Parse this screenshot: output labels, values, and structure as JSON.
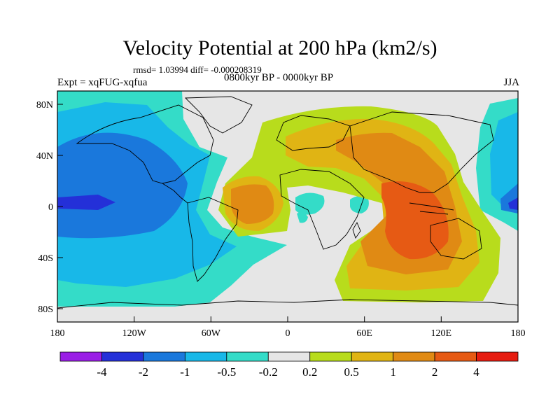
{
  "title": "Velocity Potential at 200 hPa (km2/s)",
  "stats": "rmsd= 1.03994 diff= -0.000208319",
  "expt": "Expt = xqFUG-xqfua",
  "period": "0800kyr BP - 0000kyr BP",
  "season": "JJA",
  "lon_ticks": [
    "180",
    "120W",
    "60W",
    "0",
    "60E",
    "120E",
    "180"
  ],
  "lat_ticks": [
    "80N",
    "40N",
    "0",
    "40S",
    "80S"
  ],
  "colorbar": {
    "labels": [
      "-4",
      "-2",
      "-1",
      "-0.5",
      "-0.2",
      "0.2",
      "0.5",
      "1",
      "2",
      "4"
    ],
    "colors": [
      "#9a1ee6",
      "#2430d8",
      "#1a78dc",
      "#18b8e8",
      "#34dcc8",
      "#e6e6e6",
      "#b8dc1c",
      "#e0b414",
      "#e08a14",
      "#e65a14",
      "#e61c10"
    ]
  },
  "chart_data": {
    "type": "filled-contour-map",
    "title": "Velocity Potential at 200 hPa (km2/s)",
    "units": "km2/s",
    "levels": [
      -4,
      -2,
      -1,
      -0.5,
      -0.2,
      0.2,
      0.5,
      1,
      2,
      4
    ],
    "x_range": [
      -180,
      180
    ],
    "y_range": [
      -90,
      90
    ],
    "x_ticks": [
      "180",
      "120W",
      "60W",
      "0",
      "60E",
      "120E",
      "180"
    ],
    "y_ticks": [
      "80N",
      "40N",
      "0",
      "40S",
      "80S"
    ],
    "features": [
      {
        "region": "Pacific / Americas",
        "sign": "negative",
        "min_level": -2
      },
      {
        "region": "Atlantic to Indian Ocean / Maritime Continent",
        "sign": "positive",
        "max_level": 2
      }
    ]
  }
}
